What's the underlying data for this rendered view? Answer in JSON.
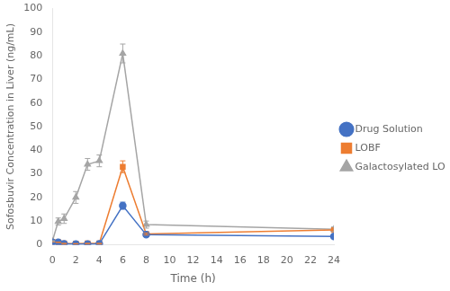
{
  "chart_data": {
    "type": "line",
    "x": [
      0,
      0.5,
      1,
      2,
      3,
      4,
      6,
      8,
      24
    ],
    "series": [
      {
        "name": "Drug Solution",
        "color": "#4472C4",
        "marker": "circle",
        "values": [
          1.0,
          1.0,
          0.3,
          0.2,
          0.2,
          0.3,
          16.5,
          4.2,
          3.5
        ],
        "errors": [
          0.15,
          0.1,
          0.05,
          0.05,
          0.05,
          0.05,
          1.5,
          0.5,
          0.3
        ]
      },
      {
        "name": "LOBF",
        "color": "#ED7D31",
        "marker": "square",
        "values": [
          1.2,
          1.0,
          0.5,
          0.4,
          0.5,
          0.5,
          33.0,
          4.5,
          6.2
        ],
        "errors": [
          0.1,
          0.1,
          0.05,
          0.05,
          0.05,
          0.05,
          2.5,
          0.4,
          0.5
        ]
      },
      {
        "name": "Galactosylated LOBF",
        "color": "#A5A5A5",
        "marker": "triangle",
        "values": [
          1.5,
          9.8,
          11.0,
          20.0,
          34.0,
          35.5,
          81.0,
          8.5,
          6.5
        ],
        "errors": [
          0.2,
          1.5,
          2.0,
          2.5,
          2.5,
          2.5,
          4.0,
          1.5,
          1.0
        ]
      }
    ],
    "xlabel": "Time (h)",
    "ylabel": "Sofosbuvir Concentration in Liver (ng/mL)",
    "xlim": [
      0,
      24
    ],
    "ylim": [
      0,
      100
    ],
    "xticks": [
      0,
      2,
      4,
      6,
      8,
      10,
      12,
      14,
      16,
      18,
      20,
      22,
      24
    ],
    "yticks": [
      0,
      10,
      20,
      30,
      40,
      50,
      60,
      70,
      80,
      90,
      100
    ],
    "grid": false,
    "legend": "right"
  }
}
